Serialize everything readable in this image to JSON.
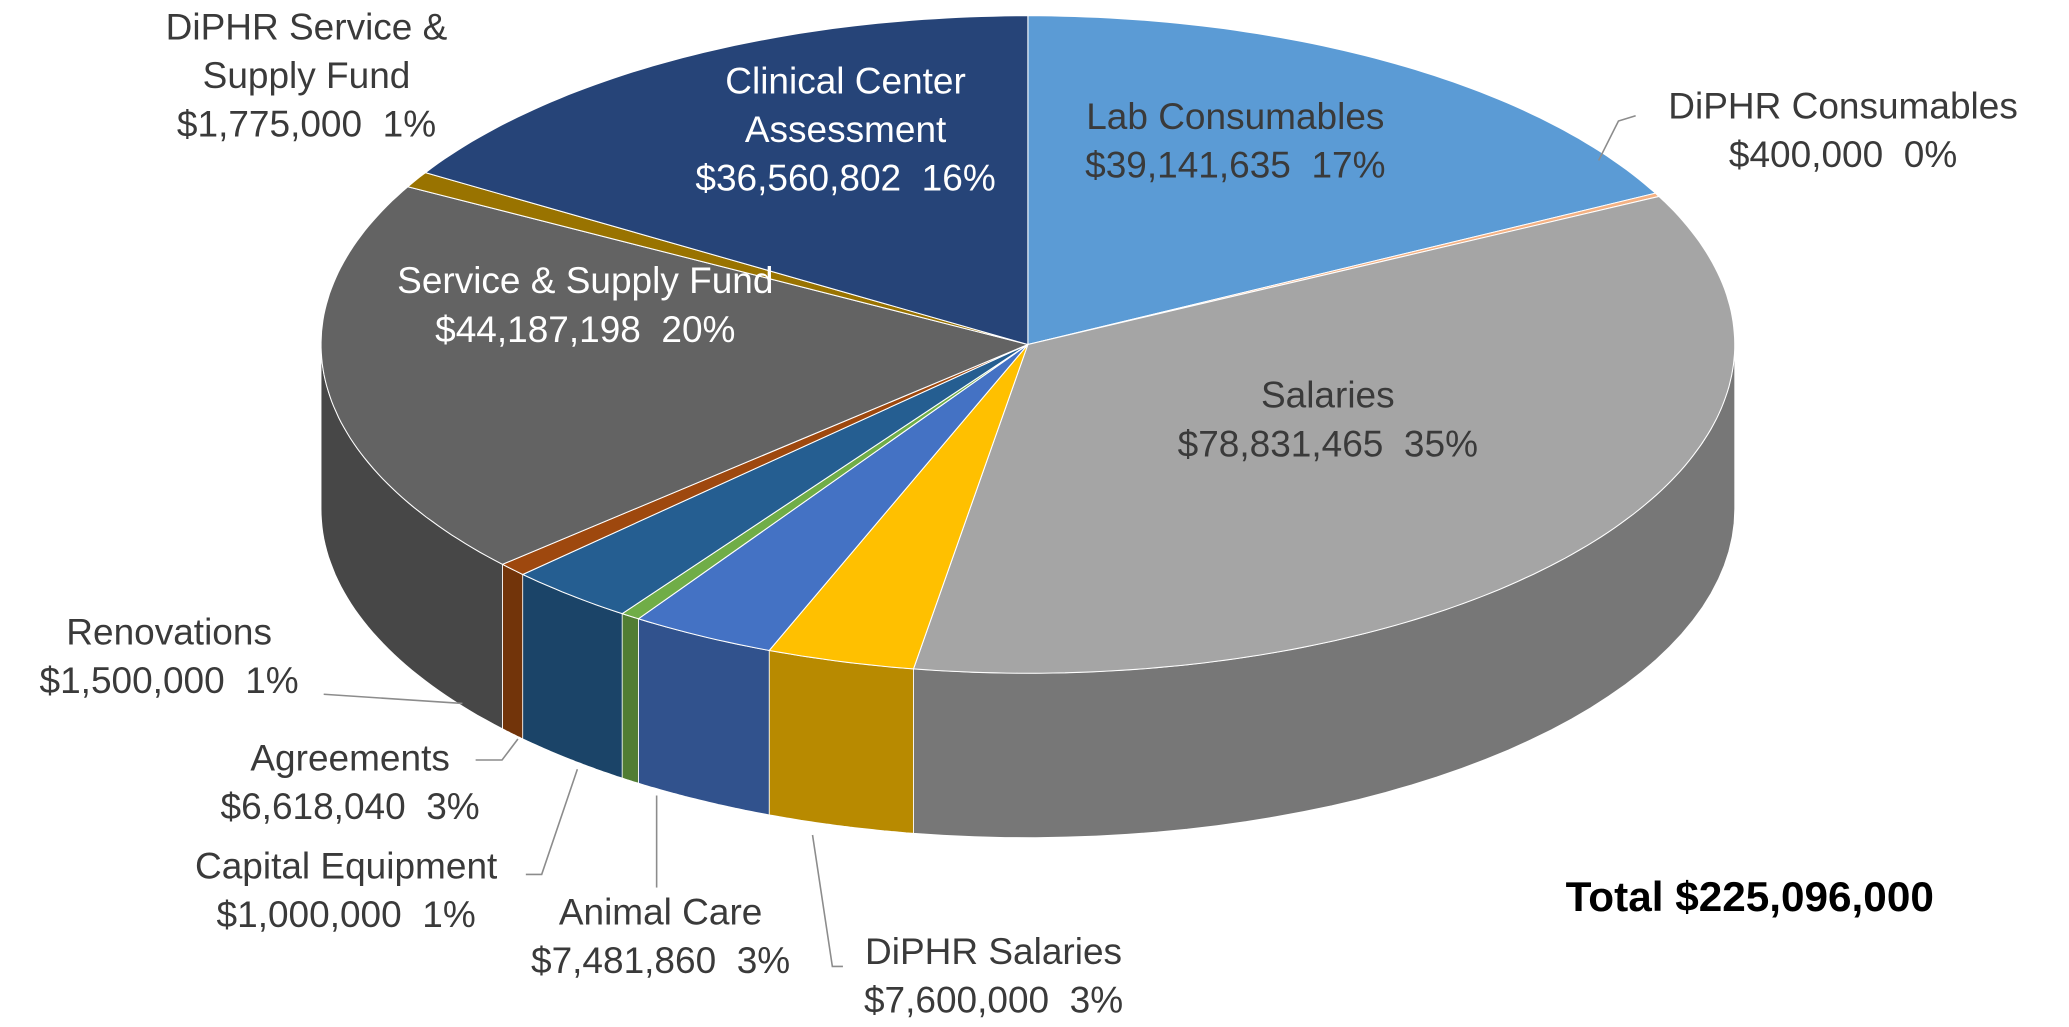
{
  "chart_data": {
    "type": "pie",
    "style": "3d",
    "categories": [
      "Lab Consumables",
      "DiPHR Consumables",
      "Salaries",
      "DiPHR Salaries",
      "Animal Care",
      "Capital Equipment",
      "Agreements",
      "Renovations",
      "Service & Supply Fund",
      "DiPHR Service & Supply Fund",
      "Clinical Center Assessment"
    ],
    "values": [
      39141635,
      400000,
      78831465,
      7600000,
      7481860,
      1000000,
      6618040,
      1500000,
      44187198,
      1775000,
      36560802
    ],
    "value_labels": [
      "$39,141,635  17%",
      "$400,000  0%",
      "$78,831,465  35%",
      "$7,600,000  3%",
      "$7,481,860  3%",
      "$1,000,000  1%",
      "$6,618,040  3%",
      "$1,500,000  1%",
      "$44,187,198  20%",
      "$1,775,000  1%",
      "$36,560,802  16%"
    ],
    "colors": [
      "#5b9bd5",
      "#f4b183",
      "#a5a5a5",
      "#ffc000",
      "#4472c4",
      "#70ad47",
      "#255e91",
      "#9e480e",
      "#636363",
      "#997300",
      "#264478"
    ],
    "annotation": "Total $225,096,000"
  }
}
